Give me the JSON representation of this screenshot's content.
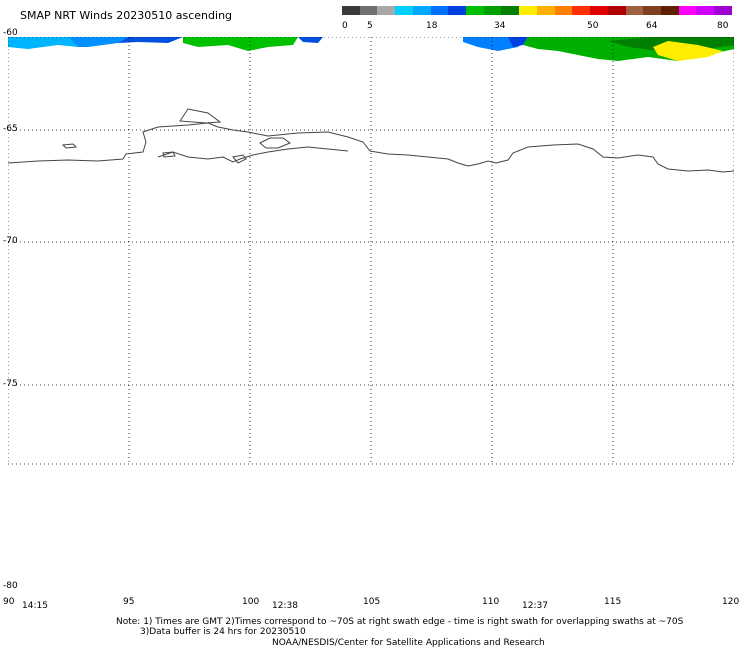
{
  "title": "SMAP NRT Winds 20230510 ascending",
  "legend": {
    "labels": [
      "0",
      "5",
      "18",
      "34",
      "50",
      "64",
      "80"
    ],
    "segments": [
      "#3a3a3a",
      "#707070",
      "#a8a8a8",
      "#00d0ff",
      "#00a8ff",
      "#0070ff",
      "#0040e0",
      "#00c000",
      "#00a000",
      "#008000",
      "#ffee00",
      "#ffb000",
      "#ff8000",
      "#ff3000",
      "#e00000",
      "#b00000",
      "#a06040",
      "#804020",
      "#602000",
      "#ff00ff",
      "#d000ff",
      "#a000d0"
    ]
  },
  "axes": {
    "lat_labels": [
      "-60",
      "-65",
      "-70",
      "-75",
      "-80"
    ],
    "lon_labels": [
      "90",
      "95",
      "100",
      "105",
      "110",
      "115",
      "120"
    ]
  },
  "swath_times": [
    "14:15",
    "12:38",
    "12:37"
  ],
  "notes": {
    "line1": "Note: 1) Times are GMT 2)Times correspond to ~70S at right swath edge - time is right swath for overlapping swaths at ~70S",
    "line2": "3)Data buffer is 24 hrs for 20230510",
    "line3": "NOAA/NESDIS/Center for Satellite Applications and Research"
  }
}
